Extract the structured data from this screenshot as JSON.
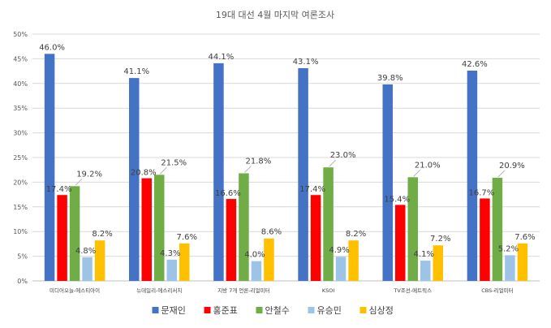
{
  "chart_data": {
    "type": "bar",
    "title": "19대 대선 4월 마지막 여론조사",
    "categories": [
      "미디어오늘-에스티아이",
      "뉴데일리-에스리서치",
      "지방 7개 언론-리얼미터",
      "KSOI",
      "TV조선-메트릭스",
      "CBS-리얼미터"
    ],
    "series": [
      {
        "name": "문재인",
        "color": "#4472c4",
        "values": [
          46.0,
          41.1,
          44.1,
          43.1,
          39.8,
          42.6
        ]
      },
      {
        "name": "홍준표",
        "color": "#ff0000",
        "values": [
          17.4,
          20.8,
          16.6,
          17.4,
          15.4,
          16.7
        ]
      },
      {
        "name": "안철수",
        "color": "#70ad47",
        "values": [
          19.2,
          21.5,
          21.8,
          23.0,
          21.0,
          20.9
        ]
      },
      {
        "name": "유승민",
        "color": "#9dc3e6",
        "values": [
          4.8,
          4.3,
          4.0,
          4.9,
          4.1,
          5.2
        ]
      },
      {
        "name": "심상정",
        "color": "#ffc000",
        "values": [
          8.2,
          7.6,
          8.6,
          8.2,
          7.2,
          7.6
        ]
      }
    ],
    "data_labels": [
      [
        "46.0%",
        "17.4%",
        "19.2%",
        "4.8%",
        "8.2%"
      ],
      [
        "41.1%",
        "20.8%",
        "21.5%",
        "4.3%",
        "7.6%"
      ],
      [
        "44.1%",
        "16.6%",
        "21.8%",
        "4.0%",
        "8.6%"
      ],
      [
        "43.1%",
        "17.4%",
        "23.0%",
        "4.9%",
        "8.2%"
      ],
      [
        "39.8%",
        "15.4%",
        "21.0%",
        "4.1%",
        "7.2%"
      ],
      [
        "42.6%",
        "16.7%",
        "20.9%",
        "5.2%",
        "7.6%"
      ]
    ],
    "ylim": [
      0,
      50
    ],
    "yticks": [
      0,
      5,
      10,
      15,
      20,
      25,
      30,
      35,
      40,
      45,
      50
    ],
    "ytick_labels": [
      "0%",
      "5%",
      "10%",
      "15%",
      "20%",
      "25%",
      "30%",
      "35%",
      "40%",
      "45%",
      "50%"
    ],
    "grid": true,
    "legend_position": "bottom"
  }
}
